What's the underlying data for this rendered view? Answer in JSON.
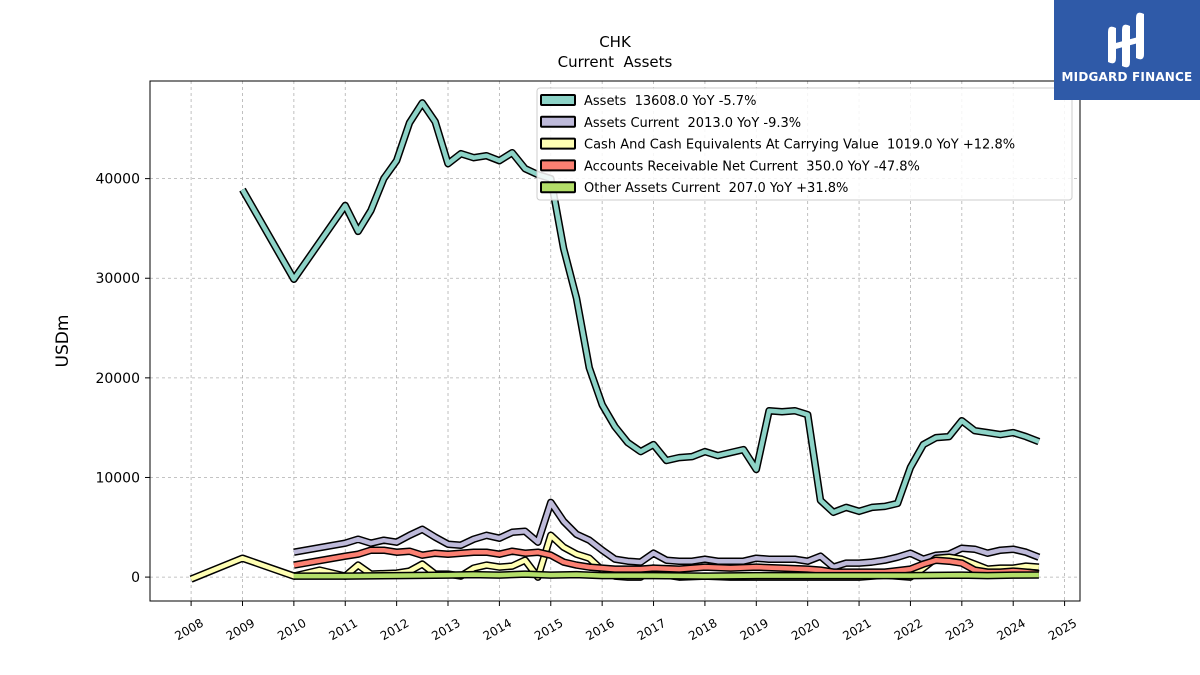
{
  "chart_data": {
    "type": "line",
    "title": "CHK",
    "subtitle": "Current  Assets",
    "ylabel": "USDm",
    "xlabel": "",
    "xlim": [
      2007.2,
      2025.3
    ],
    "ylim": [
      -2400,
      49800
    ],
    "yticks": [
      0,
      10000,
      20000,
      30000,
      40000
    ],
    "ytick_labels": [
      "0",
      "10000",
      "20000",
      "30000",
      "40000"
    ],
    "xticks": [
      2008,
      2009,
      2010,
      2011,
      2012,
      2013,
      2014,
      2015,
      2016,
      2017,
      2018,
      2019,
      2020,
      2021,
      2022,
      2023,
      2024,
      2025
    ],
    "xtick_labels": [
      "2008",
      "2009",
      "2010",
      "2011",
      "2012",
      "2013",
      "2014",
      "2015",
      "2016",
      "2017",
      "2018",
      "2019",
      "2020",
      "2021",
      "2022",
      "2023",
      "2024",
      "2025"
    ],
    "grid": true,
    "legend_position": "top-right",
    "series": [
      {
        "name": "Assets  13608.0 YoY -5.7%",
        "color": "#8dd3c7",
        "points": [
          [
            2009.0,
            38900
          ],
          [
            2010.0,
            29900
          ],
          [
            2011.0,
            37300
          ],
          [
            2011.25,
            34700
          ],
          [
            2011.5,
            36800
          ],
          [
            2011.75,
            40000
          ],
          [
            2012.0,
            41800
          ],
          [
            2012.25,
            45600
          ],
          [
            2012.5,
            47600
          ],
          [
            2012.75,
            45700
          ],
          [
            2013.0,
            41500
          ],
          [
            2013.25,
            42500
          ],
          [
            2013.5,
            42100
          ],
          [
            2013.75,
            42300
          ],
          [
            2014.0,
            41800
          ],
          [
            2014.25,
            42600
          ],
          [
            2014.5,
            41000
          ],
          [
            2014.75,
            40400
          ],
          [
            2015.0,
            40000
          ],
          [
            2015.25,
            33000
          ],
          [
            2015.5,
            28000
          ],
          [
            2015.75,
            21000
          ],
          [
            2016.0,
            17300
          ],
          [
            2016.25,
            15100
          ],
          [
            2016.5,
            13500
          ],
          [
            2016.75,
            12600
          ],
          [
            2017.0,
            13300
          ],
          [
            2017.25,
            11700
          ],
          [
            2017.5,
            12000
          ],
          [
            2017.75,
            12100
          ],
          [
            2018.0,
            12600
          ],
          [
            2018.25,
            12200
          ],
          [
            2018.5,
            12500
          ],
          [
            2018.75,
            12800
          ],
          [
            2019.0,
            10800
          ],
          [
            2019.25,
            16700
          ],
          [
            2019.5,
            16600
          ],
          [
            2019.75,
            16700
          ],
          [
            2020.0,
            16300
          ],
          [
            2020.25,
            7700
          ],
          [
            2020.5,
            6500
          ],
          [
            2020.75,
            7000
          ],
          [
            2021.0,
            6600
          ],
          [
            2021.25,
            7000
          ],
          [
            2021.5,
            7100
          ],
          [
            2021.75,
            7400
          ],
          [
            2022.0,
            11000
          ],
          [
            2022.25,
            13300
          ],
          [
            2022.5,
            14000
          ],
          [
            2022.75,
            14100
          ],
          [
            2023.0,
            15700
          ],
          [
            2023.25,
            14700
          ],
          [
            2023.5,
            14500
          ],
          [
            2023.75,
            14300
          ],
          [
            2024.0,
            14500
          ],
          [
            2024.25,
            14100
          ],
          [
            2024.5,
            13600
          ]
        ]
      },
      {
        "name": "Assets Current  2013.0 YoY -9.3%",
        "color": "#bebada",
        "points": [
          [
            2010.0,
            2500
          ],
          [
            2011.0,
            3400
          ],
          [
            2011.25,
            3800
          ],
          [
            2011.5,
            3400
          ],
          [
            2011.75,
            3700
          ],
          [
            2012.0,
            3500
          ],
          [
            2012.25,
            4200
          ],
          [
            2012.5,
            4800
          ],
          [
            2012.75,
            4000
          ],
          [
            2013.0,
            3300
          ],
          [
            2013.25,
            3200
          ],
          [
            2013.5,
            3800
          ],
          [
            2013.75,
            4200
          ],
          [
            2014.0,
            3900
          ],
          [
            2014.25,
            4500
          ],
          [
            2014.5,
            4600
          ],
          [
            2014.75,
            3500
          ],
          [
            2015.0,
            7500
          ],
          [
            2015.25,
            5600
          ],
          [
            2015.5,
            4300
          ],
          [
            2015.75,
            3700
          ],
          [
            2016.0,
            2700
          ],
          [
            2016.25,
            1800
          ],
          [
            2016.5,
            1600
          ],
          [
            2016.75,
            1500
          ],
          [
            2017.0,
            2400
          ],
          [
            2017.25,
            1700
          ],
          [
            2017.5,
            1600
          ],
          [
            2017.75,
            1600
          ],
          [
            2018.0,
            1800
          ],
          [
            2018.25,
            1600
          ],
          [
            2018.5,
            1600
          ],
          [
            2018.75,
            1600
          ],
          [
            2019.0,
            1900
          ],
          [
            2019.25,
            1800
          ],
          [
            2019.5,
            1800
          ],
          [
            2019.75,
            1800
          ],
          [
            2020.0,
            1600
          ],
          [
            2020.25,
            2100
          ],
          [
            2020.5,
            1000
          ],
          [
            2020.75,
            1400
          ],
          [
            2021.0,
            1400
          ],
          [
            2021.25,
            1500
          ],
          [
            2021.5,
            1700
          ],
          [
            2021.75,
            2000
          ],
          [
            2022.0,
            2400
          ],
          [
            2022.25,
            1800
          ],
          [
            2022.5,
            2200
          ],
          [
            2022.75,
            2300
          ],
          [
            2023.0,
            2900
          ],
          [
            2023.25,
            2800
          ],
          [
            2023.5,
            2400
          ],
          [
            2023.75,
            2700
          ],
          [
            2024.0,
            2800
          ],
          [
            2024.25,
            2500
          ],
          [
            2024.5,
            2000
          ]
        ]
      },
      {
        "name": "Cash And Cash Equivalents At Carrying Value  1019.0 YoY +12.8%",
        "color": "#ffffb3",
        "points": [
          [
            2008.0,
            -200
          ],
          [
            2009.0,
            1900
          ],
          [
            2010.0,
            100
          ],
          [
            2010.5,
            700
          ],
          [
            2011.0,
            100
          ],
          [
            2011.25,
            1200
          ],
          [
            2011.5,
            300
          ],
          [
            2012.0,
            400
          ],
          [
            2012.25,
            600
          ],
          [
            2012.5,
            1300
          ],
          [
            2012.75,
            300
          ],
          [
            2013.0,
            300
          ],
          [
            2013.25,
            100
          ],
          [
            2013.5,
            900
          ],
          [
            2013.75,
            1200
          ],
          [
            2014.0,
            1000
          ],
          [
            2014.25,
            1100
          ],
          [
            2014.5,
            1700
          ],
          [
            2014.75,
            0
          ],
          [
            2015.0,
            4200
          ],
          [
            2015.25,
            3000
          ],
          [
            2015.5,
            2300
          ],
          [
            2015.75,
            1900
          ],
          [
            2016.0,
            700
          ],
          [
            2016.25,
            100
          ],
          [
            2016.5,
            0
          ],
          [
            2016.75,
            0
          ],
          [
            2017.0,
            900
          ],
          [
            2017.25,
            200
          ],
          [
            2017.5,
            0
          ],
          [
            2018.0,
            100
          ],
          [
            2018.5,
            0
          ],
          [
            2019.0,
            0
          ],
          [
            2019.5,
            0
          ],
          [
            2020.0,
            0
          ],
          [
            2020.25,
            0
          ],
          [
            2020.5,
            0
          ],
          [
            2021.0,
            0
          ],
          [
            2021.5,
            200
          ],
          [
            2022.0,
            0
          ],
          [
            2022.25,
            900
          ],
          [
            2022.5,
            1900
          ],
          [
            2022.75,
            2000
          ],
          [
            2023.0,
            1800
          ],
          [
            2023.25,
            1300
          ],
          [
            2023.5,
            800
          ],
          [
            2023.75,
            900
          ],
          [
            2024.0,
            900
          ],
          [
            2024.25,
            1100
          ],
          [
            2024.5,
            1000
          ]
        ]
      },
      {
        "name": "Accounts Receivable Net Current  350.0 YoY -47.8%",
        "color": "#fb8072",
        "points": [
          [
            2010.0,
            1200
          ],
          [
            2011.0,
            2100
          ],
          [
            2011.25,
            2300
          ],
          [
            2011.5,
            2700
          ],
          [
            2011.75,
            2700
          ],
          [
            2012.0,
            2500
          ],
          [
            2012.25,
            2600
          ],
          [
            2012.5,
            2200
          ],
          [
            2012.75,
            2400
          ],
          [
            2013.0,
            2300
          ],
          [
            2013.25,
            2400
          ],
          [
            2013.5,
            2500
          ],
          [
            2013.75,
            2500
          ],
          [
            2014.0,
            2300
          ],
          [
            2014.25,
            2600
          ],
          [
            2014.5,
            2400
          ],
          [
            2014.75,
            2500
          ],
          [
            2015.0,
            2200
          ],
          [
            2015.25,
            1500
          ],
          [
            2015.5,
            1200
          ],
          [
            2015.75,
            1000
          ],
          [
            2016.0,
            900
          ],
          [
            2016.25,
            800
          ],
          [
            2016.5,
            800
          ],
          [
            2016.75,
            800
          ],
          [
            2017.0,
            900
          ],
          [
            2017.5,
            800
          ],
          [
            2018.0,
            1000
          ],
          [
            2018.5,
            900
          ],
          [
            2019.0,
            1000
          ],
          [
            2019.5,
            900
          ],
          [
            2020.0,
            800
          ],
          [
            2020.25,
            700
          ],
          [
            2020.5,
            500
          ],
          [
            2021.0,
            500
          ],
          [
            2021.5,
            500
          ],
          [
            2022.0,
            800
          ],
          [
            2022.25,
            1300
          ],
          [
            2022.5,
            1700
          ],
          [
            2022.75,
            1600
          ],
          [
            2023.0,
            1400
          ],
          [
            2023.25,
            700
          ],
          [
            2023.5,
            500
          ],
          [
            2023.75,
            500
          ],
          [
            2024.0,
            600
          ],
          [
            2024.25,
            500
          ],
          [
            2024.5,
            350
          ]
        ]
      },
      {
        "name": "Other Assets Current  207.0 YoY +31.8%",
        "color": "#b3de69",
        "points": [
          [
            2010.0,
            100
          ],
          [
            2011.0,
            100
          ],
          [
            2012.0,
            150
          ],
          [
            2013.0,
            200
          ],
          [
            2013.5,
            250
          ],
          [
            2014.0,
            200
          ],
          [
            2014.5,
            300
          ],
          [
            2015.0,
            200
          ],
          [
            2015.5,
            250
          ],
          [
            2016.0,
            150
          ],
          [
            2017.0,
            150
          ],
          [
            2018.0,
            100
          ],
          [
            2019.0,
            150
          ],
          [
            2020.0,
            150
          ],
          [
            2021.0,
            150
          ],
          [
            2022.0,
            150
          ],
          [
            2023.0,
            200
          ],
          [
            2023.5,
            150
          ],
          [
            2024.0,
            200
          ],
          [
            2024.5,
            207
          ]
        ]
      }
    ]
  },
  "logo": {
    "text": "MIDGARD FINANCE",
    "bg": "#2f5aa8"
  }
}
